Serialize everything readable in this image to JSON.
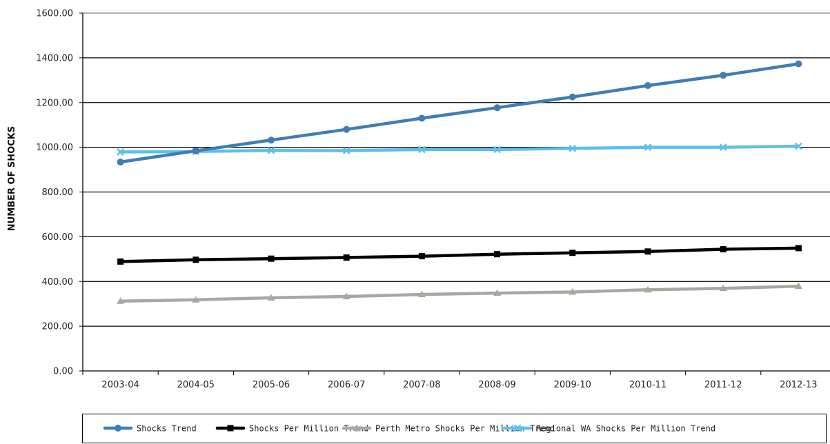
{
  "chart_data": {
    "type": "line",
    "title": "",
    "xlabel": "",
    "ylabel": "NUMBER OF SHOCKS",
    "ylim": [
      0,
      1600
    ],
    "y_ticks": [
      "0.00",
      "200.00",
      "400.00",
      "600.00",
      "800.00",
      "1000.00",
      "1200.00",
      "1400.00",
      "1600.00"
    ],
    "categories": [
      "2003-04",
      "2004-05",
      "2005-06",
      "2006-07",
      "2007-08",
      "2008-09",
      "2009-10",
      "2010-11",
      "2011-12",
      "2012-13"
    ],
    "grid": true,
    "legend_position": "bottom",
    "series": [
      {
        "name": "Shocks Trend",
        "color": "#3f7db5",
        "marker": "diamond",
        "values": [
          934,
          984,
          1032,
          1080,
          1130,
          1177,
          1225,
          1276,
          1322,
          1373
        ]
      },
      {
        "name": "Shocks Per Million Trend",
        "color": "#000000",
        "marker": "square",
        "values": [
          489,
          497,
          502,
          507,
          513,
          522,
          528,
          534,
          544,
          549
        ]
      },
      {
        "name": "Perth Metro Shocks Per Million Trend",
        "color": "#aaa7a1",
        "marker": "triangle",
        "values": [
          312,
          318,
          327,
          333,
          342,
          348,
          353,
          363,
          369,
          379
        ]
      },
      {
        "name": "Regional WA Shocks Per Million Trend",
        "color": "#5bc0eb",
        "marker": "x",
        "values": [
          979,
          981,
          986,
          985,
          990,
          990,
          995,
          1000,
          1000,
          1005
        ]
      }
    ]
  }
}
